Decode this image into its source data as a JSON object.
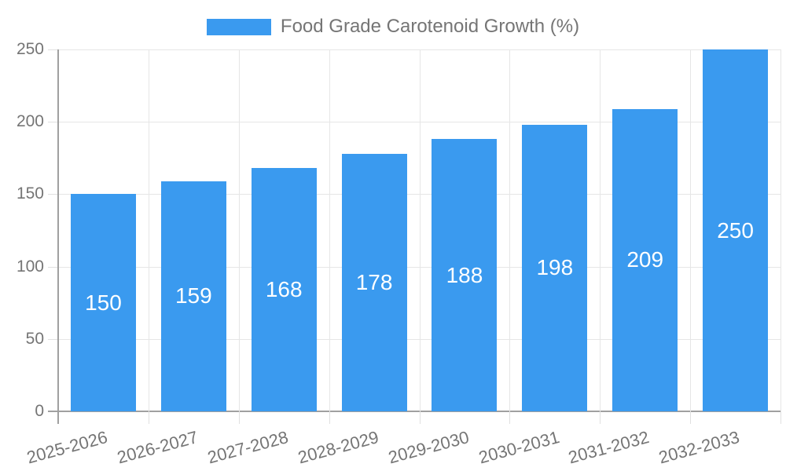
{
  "legend": {
    "label": "Food Grade Carotenoid Growth (%)"
  },
  "colors": {
    "bar": "#3A9AEF",
    "value_label_text": "#FFFFFF",
    "axis_text": "#757575",
    "legend_text": "#757575",
    "gridline": "#E6E6E6",
    "tick": "#E0E0E0",
    "axis_line": "#A0A0A0",
    "background": "#FFFFFF"
  },
  "chart_data": {
    "type": "bar",
    "title": "Food Grade Carotenoid Growth (%)",
    "series": [
      {
        "name": "Food Grade Carotenoid Growth (%)",
        "values": [
          150,
          159,
          168,
          178,
          188,
          198,
          209,
          250
        ]
      }
    ],
    "categories": [
      "2025-2026",
      "2026-2027",
      "2027-2028",
      "2028-2029",
      "2029-2030",
      "2030-2031",
      "2031-2032",
      "2032-2033"
    ],
    "values": [
      150,
      159,
      168,
      178,
      188,
      198,
      209,
      250
    ],
    "value_labels_shown": true,
    "value_label_position": "inside-center",
    "xlabel": "",
    "ylabel": "",
    "ylim": [
      0,
      250
    ],
    "yticks": [
      0,
      50,
      100,
      150,
      200,
      250
    ],
    "x_label_rotation_deg": -15,
    "grid": true,
    "legend_position": "top-center"
  }
}
